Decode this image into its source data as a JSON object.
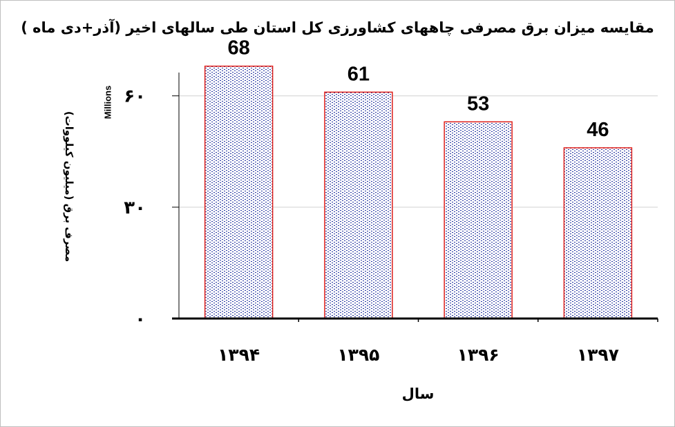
{
  "chart_data": {
    "type": "bar",
    "title": "مقایسه میزان برق مصرفی چاههای کشاورزی کل استان طی سالهای اخیر (آذر+دی ماه )",
    "xlabel": "سال",
    "ylabel": "مصرف برق  (میلیون کیلووات)",
    "y_units_label": "Millions",
    "categories": [
      "۱۳۹۴",
      "۱۳۹۵",
      "۱۳۹۶",
      "۱۳۹۷"
    ],
    "values": [
      68,
      61,
      53,
      46
    ],
    "data_labels": [
      "68",
      "61",
      "53",
      "46"
    ],
    "ylim": [
      0,
      70
    ],
    "yticks": [
      0,
      30,
      60
    ],
    "ytick_labels": [
      "۰",
      "۳۰",
      "۶۰"
    ],
    "grid": true,
    "legend": "none"
  },
  "colors": {
    "bar_border": "#e0201b",
    "bar_fill_dots": "#1f2f9e",
    "grid": "#d0d0d0",
    "axis": "#000000"
  }
}
